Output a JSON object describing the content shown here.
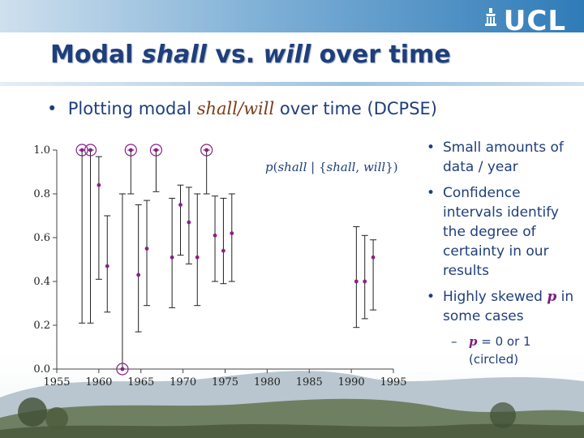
{
  "header": {
    "logo_text": "UCL"
  },
  "slide": {
    "title_part1": "Modal ",
    "title_part2": "shall",
    "title_part3": "  vs. ",
    "title_part4": "will",
    "title_part5": " over time"
  },
  "main_bullet": {
    "prefix": "Plotting modal ",
    "italic": "shall/will",
    "suffix": " over time (DCPSE)"
  },
  "side_bullets": {
    "b1": "Small amounts of data / year",
    "b2": "Confidence intervals identify the degree of certainty in our results",
    "b3_prefix": "Highly skewed ",
    "b3_p": "p",
    "b3_suffix": " in some cases",
    "sub_p": "p",
    "sub_text": " = 0 or 1 (circled)"
  },
  "chart_data": {
    "type": "scatter",
    "caption": "p(shall | {shall, will})",
    "xlim": [
      1955,
      1995
    ],
    "ylim": [
      0,
      1
    ],
    "x_ticks": [
      "1955",
      "1960",
      "1965",
      "1970",
      "1975",
      "1980",
      "1985",
      "1990",
      "1995"
    ],
    "y_ticks": [
      "0.0",
      "0.2",
      "0.4",
      "0.6",
      "0.8",
      "1.0"
    ],
    "grid": false,
    "points": [
      {
        "x": 1958.0,
        "y": 1.0,
        "low": 0.21,
        "high": 1.0,
        "circled": true
      },
      {
        "x": 1959.0,
        "y": 1.0,
        "low": 0.21,
        "high": 1.0,
        "circled": true
      },
      {
        "x": 1960.0,
        "y": 0.84,
        "low": 0.41,
        "high": 0.97,
        "circled": false
      },
      {
        "x": 1961.0,
        "y": 0.47,
        "low": 0.26,
        "high": 0.7,
        "circled": false
      },
      {
        "x": 1962.8,
        "y": 0.0,
        "low": 0.0,
        "high": 0.8,
        "circled": true
      },
      {
        "x": 1963.8,
        "y": 1.0,
        "low": 0.8,
        "high": 1.0,
        "circled": true
      },
      {
        "x": 1964.7,
        "y": 0.43,
        "low": 0.17,
        "high": 0.75,
        "circled": false
      },
      {
        "x": 1965.7,
        "y": 0.55,
        "low": 0.29,
        "high": 0.77,
        "circled": false
      },
      {
        "x": 1966.8,
        "y": 1.0,
        "low": 0.81,
        "high": 1.0,
        "circled": true
      },
      {
        "x": 1968.7,
        "y": 0.51,
        "low": 0.28,
        "high": 0.78,
        "circled": false
      },
      {
        "x": 1969.7,
        "y": 0.75,
        "low": 0.52,
        "high": 0.84,
        "circled": false
      },
      {
        "x": 1970.7,
        "y": 0.67,
        "low": 0.48,
        "high": 0.83,
        "circled": false
      },
      {
        "x": 1971.7,
        "y": 0.51,
        "low": 0.29,
        "high": 0.8,
        "circled": false
      },
      {
        "x": 1972.8,
        "y": 1.0,
        "low": 0.8,
        "high": 1.0,
        "circled": true
      },
      {
        "x": 1973.8,
        "y": 0.61,
        "low": 0.4,
        "high": 0.79,
        "circled": false
      },
      {
        "x": 1974.8,
        "y": 0.54,
        "low": 0.39,
        "high": 0.78,
        "circled": false
      },
      {
        "x": 1975.8,
        "y": 0.62,
        "low": 0.4,
        "high": 0.8,
        "circled": false
      },
      {
        "x": 1990.6,
        "y": 0.4,
        "low": 0.19,
        "high": 0.65,
        "circled": false
      },
      {
        "x": 1991.6,
        "y": 0.4,
        "low": 0.23,
        "high": 0.61,
        "circled": false
      },
      {
        "x": 1992.6,
        "y": 0.51,
        "low": 0.27,
        "high": 0.59,
        "circled": false
      }
    ]
  }
}
